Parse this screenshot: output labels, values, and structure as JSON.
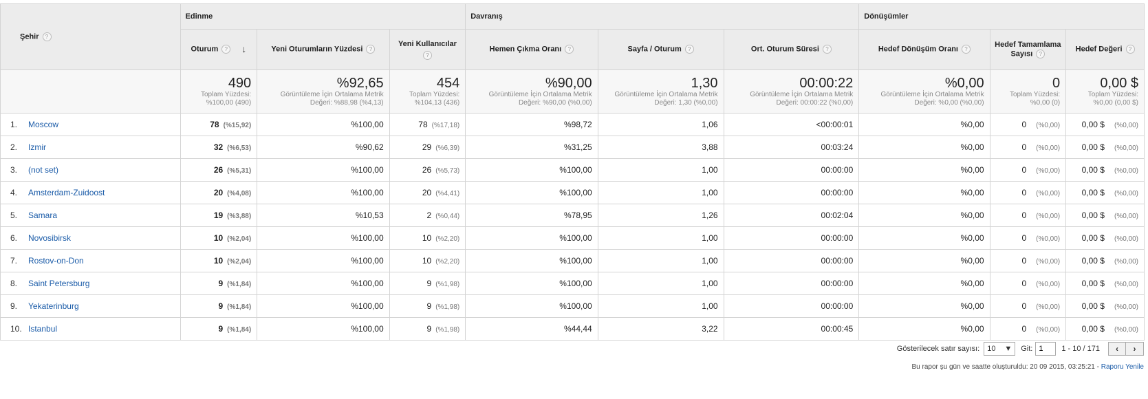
{
  "headers": {
    "city": "Şehir",
    "groups": [
      "Edinme",
      "Davranış",
      "Dönüşümler"
    ],
    "columns": [
      "Oturum",
      "Yeni Oturumların Yüzdesi",
      "Yeni Kullanıcılar",
      "Hemen Çıkma Oranı",
      "Sayfa / Oturum",
      "Ort. Oturum Süresi",
      "Hedef Dönüşüm Oranı",
      "Hedef Tamamlama Sayısı",
      "Hedef Değeri"
    ],
    "help_glyph": "?",
    "sort_glyph": "↓"
  },
  "totals": [
    {
      "value": "490",
      "sub1": "Toplam Yüzdesi:",
      "sub2": "%100,00 (490)"
    },
    {
      "value": "%92,65",
      "sub1": "Görüntüleme İçin Ortalama Metrik",
      "sub2": "Değeri: %88,98 (%4,13)"
    },
    {
      "value": "454",
      "sub1": "Toplam Yüzdesi:",
      "sub2": "%104,13 (436)"
    },
    {
      "value": "%90,00",
      "sub1": "Görüntüleme İçin Ortalama Metrik",
      "sub2": "Değeri: %90,00 (%0,00)"
    },
    {
      "value": "1,30",
      "sub1": "Görüntüleme İçin Ortalama Metrik",
      "sub2": "Değeri: 1,30 (%0,00)"
    },
    {
      "value": "00:00:22",
      "sub1": "Görüntüleme İçin Ortalama Metrik",
      "sub2": "Değeri: 00:00:22 (%0,00)"
    },
    {
      "value": "%0,00",
      "sub1": "Görüntüleme İçin Ortalama Metrik",
      "sub2": "Değeri: %0,00 (%0,00)"
    },
    {
      "value": "0",
      "sub1": "Toplam Yüzdesi:",
      "sub2": "%0,00 (0)"
    },
    {
      "value": "0,00 $",
      "sub1": "Toplam Yüzdesi:",
      "sub2": "%0,00 (0,00 $)"
    }
  ],
  "rows": [
    {
      "idx": "1.",
      "city": "Moscow",
      "sessions": "78",
      "sessions_pct": "(%15,92)",
      "new_pct": "%100,00",
      "new_users": "78",
      "new_users_pct": "(%17,18)",
      "bounce": "%98,72",
      "pages": "1,06",
      "duration": "<00:00:01",
      "conv": "%0,00",
      "goal": "0",
      "goal_pct": "(%0,00)",
      "value": "0,00 $",
      "value_pct": "(%0,00)"
    },
    {
      "idx": "2.",
      "city": "Izmir",
      "sessions": "32",
      "sessions_pct": "(%6,53)",
      "new_pct": "%90,62",
      "new_users": "29",
      "new_users_pct": "(%6,39)",
      "bounce": "%31,25",
      "pages": "3,88",
      "duration": "00:03:24",
      "conv": "%0,00",
      "goal": "0",
      "goal_pct": "(%0,00)",
      "value": "0,00 $",
      "value_pct": "(%0,00)"
    },
    {
      "idx": "3.",
      "city": "(not set)",
      "sessions": "26",
      "sessions_pct": "(%5,31)",
      "new_pct": "%100,00",
      "new_users": "26",
      "new_users_pct": "(%5,73)",
      "bounce": "%100,00",
      "pages": "1,00",
      "duration": "00:00:00",
      "conv": "%0,00",
      "goal": "0",
      "goal_pct": "(%0,00)",
      "value": "0,00 $",
      "value_pct": "(%0,00)"
    },
    {
      "idx": "4.",
      "city": "Amsterdam-Zuidoost",
      "sessions": "20",
      "sessions_pct": "(%4,08)",
      "new_pct": "%100,00",
      "new_users": "20",
      "new_users_pct": "(%4,41)",
      "bounce": "%100,00",
      "pages": "1,00",
      "duration": "00:00:00",
      "conv": "%0,00",
      "goal": "0",
      "goal_pct": "(%0,00)",
      "value": "0,00 $",
      "value_pct": "(%0,00)"
    },
    {
      "idx": "5.",
      "city": "Samara",
      "sessions": "19",
      "sessions_pct": "(%3,88)",
      "new_pct": "%10,53",
      "new_users": "2",
      "new_users_pct": "(%0,44)",
      "bounce": "%78,95",
      "pages": "1,26",
      "duration": "00:02:04",
      "conv": "%0,00",
      "goal": "0",
      "goal_pct": "(%0,00)",
      "value": "0,00 $",
      "value_pct": "(%0,00)"
    },
    {
      "idx": "6.",
      "city": "Novosibirsk",
      "sessions": "10",
      "sessions_pct": "(%2,04)",
      "new_pct": "%100,00",
      "new_users": "10",
      "new_users_pct": "(%2,20)",
      "bounce": "%100,00",
      "pages": "1,00",
      "duration": "00:00:00",
      "conv": "%0,00",
      "goal": "0",
      "goal_pct": "(%0,00)",
      "value": "0,00 $",
      "value_pct": "(%0,00)"
    },
    {
      "idx": "7.",
      "city": "Rostov-on-Don",
      "sessions": "10",
      "sessions_pct": "(%2,04)",
      "new_pct": "%100,00",
      "new_users": "10",
      "new_users_pct": "(%2,20)",
      "bounce": "%100,00",
      "pages": "1,00",
      "duration": "00:00:00",
      "conv": "%0,00",
      "goal": "0",
      "goal_pct": "(%0,00)",
      "value": "0,00 $",
      "value_pct": "(%0,00)"
    },
    {
      "idx": "8.",
      "city": "Saint Petersburg",
      "sessions": "9",
      "sessions_pct": "(%1,84)",
      "new_pct": "%100,00",
      "new_users": "9",
      "new_users_pct": "(%1,98)",
      "bounce": "%100,00",
      "pages": "1,00",
      "duration": "00:00:00",
      "conv": "%0,00",
      "goal": "0",
      "goal_pct": "(%0,00)",
      "value": "0,00 $",
      "value_pct": "(%0,00)"
    },
    {
      "idx": "9.",
      "city": "Yekaterinburg",
      "sessions": "9",
      "sessions_pct": "(%1,84)",
      "new_pct": "%100,00",
      "new_users": "9",
      "new_users_pct": "(%1,98)",
      "bounce": "%100,00",
      "pages": "1,00",
      "duration": "00:00:00",
      "conv": "%0,00",
      "goal": "0",
      "goal_pct": "(%0,00)",
      "value": "0,00 $",
      "value_pct": "(%0,00)"
    },
    {
      "idx": "10.",
      "city": "Istanbul",
      "sessions": "9",
      "sessions_pct": "(%1,84)",
      "new_pct": "%100,00",
      "new_users": "9",
      "new_users_pct": "(%1,98)",
      "bounce": "%44,44",
      "pages": "3,22",
      "duration": "00:00:45",
      "conv": "%0,00",
      "goal": "0",
      "goal_pct": "(%0,00)",
      "value": "0,00 $",
      "value_pct": "(%0,00)"
    }
  ],
  "footer": {
    "rows_label": "Gösterilecek satır sayısı:",
    "rows_value": "10",
    "goto_label": "Git:",
    "goto_value": "1",
    "range": "1 - 10 / 171",
    "prev": "‹",
    "next": "›",
    "report_text": "Bu rapor şu gün ve saatte oluşturuldu: 20 09 2015, 03:25:21 - ",
    "refresh_link": "Raporu Yenile"
  },
  "colors": {
    "link": "#1a5ba8",
    "header_bg": "#ececec",
    "total_bg": "#f7f7f7"
  }
}
